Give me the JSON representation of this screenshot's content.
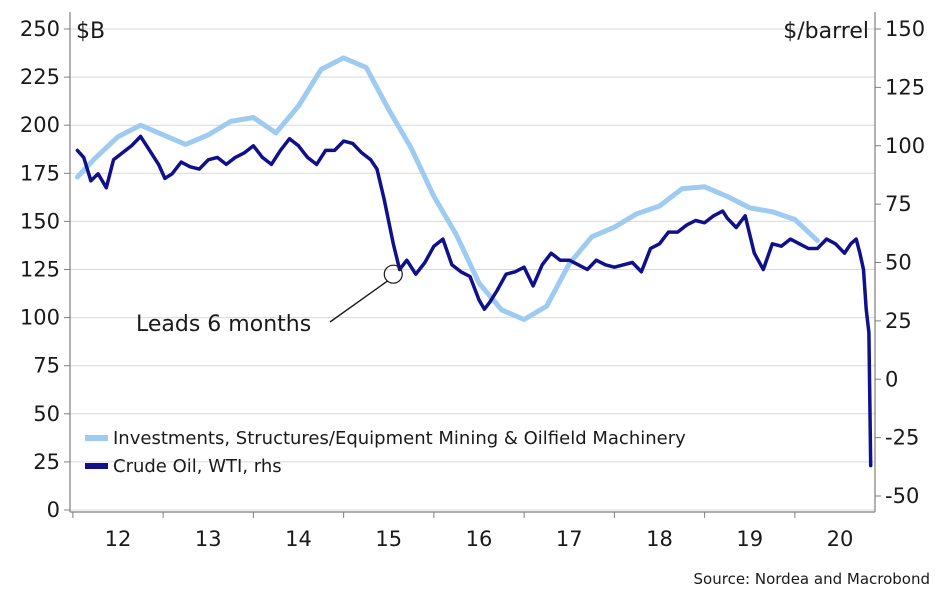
{
  "chart_data": {
    "type": "line",
    "left_axis": {
      "unit": "$B",
      "ticks": [
        "250",
        "225",
        "200",
        "175",
        "150",
        "125",
        "100",
        "75",
        "50",
        "25",
        "0"
      ],
      "ylim": [
        0,
        250
      ]
    },
    "right_axis": {
      "unit": "$/barrel",
      "ticks": [
        "150",
        "125",
        "100",
        "75",
        "50",
        "25",
        "0",
        "-25",
        "-50"
      ],
      "ylim": [
        -55,
        150
      ]
    },
    "x_axis": {
      "ticks": [
        "12",
        "13",
        "14",
        "15",
        "16",
        "17",
        "18",
        "19",
        "20"
      ],
      "xlim": [
        2011.5,
        2020.75
      ]
    },
    "series": [
      {
        "name": "Investments, Structures/Equipment Mining & Oilfield Machinery",
        "axis": "left",
        "color": "#9fcbf0",
        "x": [
          2011.55,
          2011.75,
          2012.0,
          2012.25,
          2012.5,
          2012.75,
          2013.0,
          2013.25,
          2013.5,
          2013.75,
          2014.0,
          2014.25,
          2014.5,
          2014.75,
          2015.0,
          2015.25,
          2015.5,
          2015.75,
          2016.0,
          2016.25,
          2016.5,
          2016.75,
          2017.0,
          2017.25,
          2017.5,
          2017.75,
          2018.0,
          2018.25,
          2018.5,
          2018.75,
          2019.0,
          2019.25,
          2019.5,
          2019.75
        ],
        "y": [
          173,
          183,
          194,
          200,
          195,
          190,
          195,
          202,
          204,
          196,
          210,
          229,
          235,
          230,
          208,
          188,
          163,
          143,
          118,
          104,
          99,
          106,
          128,
          142,
          147,
          154,
          158,
          167,
          168,
          163,
          157,
          155,
          151,
          140
        ]
      },
      {
        "name": "Crude Oil, WTI, rhs",
        "axis": "right",
        "color": "#10108c",
        "x": [
          2011.55,
          2011.62,
          2011.7,
          2011.78,
          2011.87,
          2011.95,
          2012.05,
          2012.15,
          2012.25,
          2012.35,
          2012.45,
          2012.52,
          2012.6,
          2012.7,
          2012.8,
          2012.9,
          2013.0,
          2013.1,
          2013.2,
          2013.3,
          2013.4,
          2013.5,
          2013.6,
          2013.7,
          2013.8,
          2013.9,
          2014.0,
          2014.1,
          2014.2,
          2014.3,
          2014.4,
          2014.5,
          2014.6,
          2014.7,
          2014.8,
          2014.87,
          2014.95,
          2015.05,
          2015.12,
          2015.2,
          2015.3,
          2015.4,
          2015.5,
          2015.6,
          2015.7,
          2015.8,
          2015.9,
          2016.0,
          2016.06,
          2016.12,
          2016.2,
          2016.3,
          2016.4,
          2016.5,
          2016.6,
          2016.7,
          2016.8,
          2016.9,
          2017.0,
          2017.1,
          2017.2,
          2017.3,
          2017.4,
          2017.5,
          2017.6,
          2017.7,
          2017.8,
          2017.9,
          2018.0,
          2018.1,
          2018.2,
          2018.3,
          2018.4,
          2018.5,
          2018.6,
          2018.7,
          2018.75,
          2018.85,
          2018.95,
          2019.05,
          2019.15,
          2019.25,
          2019.35,
          2019.45,
          2019.55,
          2019.65,
          2019.75,
          2019.85,
          2019.95,
          2020.05,
          2020.12,
          2020.18,
          2020.22,
          2020.26,
          2020.29,
          2020.32,
          2020.34
        ],
        "y": [
          98,
          95,
          85,
          88,
          82,
          94,
          97,
          100,
          104,
          98,
          92,
          86,
          88,
          93,
          91,
          90,
          94,
          95,
          92,
          95,
          97,
          100,
          95,
          92,
          98,
          103,
          100,
          95,
          92,
          98,
          98,
          102,
          101,
          97,
          94,
          90,
          77,
          58,
          47,
          51,
          45,
          50,
          57,
          60,
          49,
          46,
          44,
          34,
          30,
          33,
          38,
          45,
          46,
          48,
          40,
          49,
          54,
          51,
          51,
          49,
          47,
          51,
          49,
          48,
          49,
          50,
          46,
          56,
          58,
          63,
          63,
          66,
          68,
          67,
          70,
          72,
          69,
          65,
          70,
          54,
          47,
          58,
          57,
          60,
          58,
          56,
          56,
          60,
          58,
          54,
          58,
          60,
          54,
          47,
          30,
          20,
          -37
        ]
      }
    ],
    "legend": {
      "position": "bottom-left",
      "items": [
        {
          "label": "Investments, Structures/Equipment Mining & Oilfield Machinery",
          "color": "#9fcbf0"
        },
        {
          "label": "Crude Oil, WTI, rhs",
          "color": "#10108c"
        }
      ]
    },
    "annotation": {
      "text": "Leads 6 months",
      "x": 2015.05,
      "y_right": 45
    },
    "grid": true,
    "source": "Source: Nordea and Macrobond"
  }
}
